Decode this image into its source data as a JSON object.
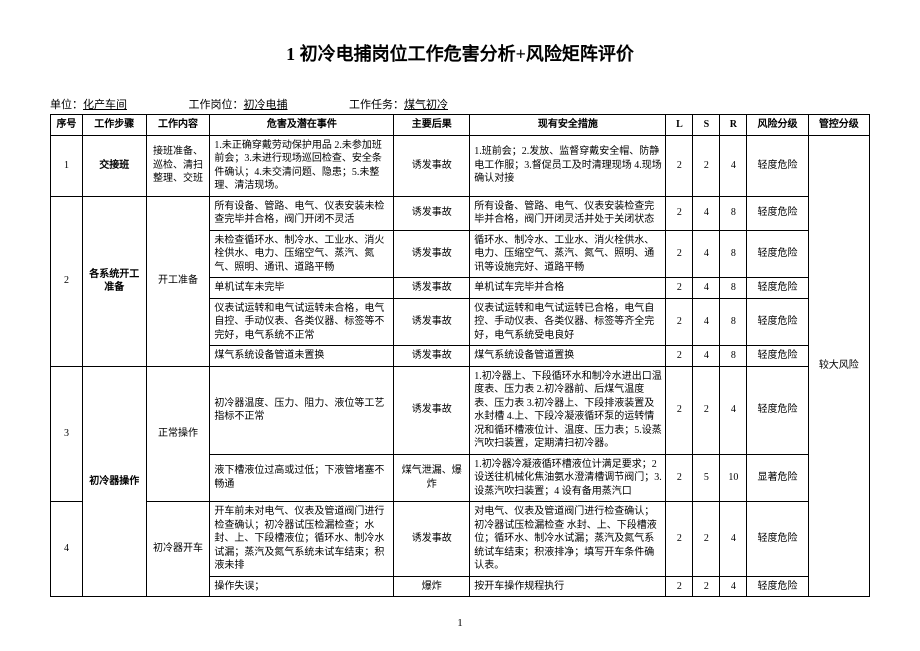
{
  "title": "1  初冷电捕岗位工作危害分析+风险矩阵评价",
  "meta": {
    "unit_label": "单位：",
    "unit_value": "化产车间",
    "post_label": "工作岗位：",
    "post_value": "初冷电捕",
    "task_label": "工作任务：",
    "task_value": "煤气初冷"
  },
  "headers": {
    "seq": "序号",
    "step": "工作步骤",
    "task": "工作内容",
    "hazard": "危害及潜在事件",
    "consequence": "主要后果",
    "measure": "现有安全措施",
    "l": "L",
    "s": "S",
    "r": "R",
    "risk": "风险分级",
    "ctrl": "管控分级"
  },
  "rows": [
    {
      "seq": "1",
      "step": "交接班",
      "task": "接班准备、巡检、清扫整理、交班",
      "hazard": "1.未正确穿戴劳动保护用品  2.未参加班前会；3.未进行现场巡回检查、安全条件确认；4.未交清问题、隐患；5.未整理、清洁现场。",
      "consequence": "诱发事故",
      "measure": "1.班前会；2.发放、监督穿戴安全帽、防静电工作服；3.督促员工及时清理现场 4.现场确认对接",
      "l": "2",
      "s": "2",
      "r": "4",
      "risk": "轻度危险"
    },
    {
      "seq": "2",
      "seq_rowspan": 5,
      "step": "各系统开工准备",
      "step_rowspan": 5,
      "task": "开工准备",
      "task_rowspan": 5,
      "hazard": "所有设备、管路、电气、仪表安装未检查完毕并合格，阀门开闭不灵活",
      "consequence": "诱发事故",
      "measure": "所有设备、管路、电气、仪表安装检查完毕并合格，阀门开闭灵活并处于关闭状态",
      "l": "2",
      "s": "4",
      "r": "8",
      "risk": "轻度危险"
    },
    {
      "hazard": "未检查循环水、制冷水、工业水、消火栓供水、电力、压缩空气、蒸汽、氮气、照明、通讯、道路平畅",
      "consequence": "诱发事故",
      "measure": "循环水、制冷水、工业水、消火栓供水、电力、压缩空气、蒸汽、氮气、照明、通讯等设施完好、道路平畅",
      "l": "2",
      "s": "4",
      "r": "8",
      "risk": "轻度危险"
    },
    {
      "hazard": "单机试车未完毕",
      "consequence": "诱发事故",
      "measure": "单机试车完毕并合格",
      "l": "2",
      "s": "4",
      "r": "8",
      "risk": "轻度危险"
    },
    {
      "hazard": "仪表试运转和电气试运转未合格，电气自控、手动仪表、各类仪器、标签等不完好，电气系统不正常",
      "consequence": "诱发事故",
      "measure": "仪表试运转和电气试运转已合格，电气自控、手动仪表、各类仪器、标签等齐全完好，电气系统受电良好",
      "l": "2",
      "s": "4",
      "r": "8",
      "risk": "轻度危险"
    },
    {
      "hazard": "煤气系统设备管道未置换",
      "consequence": "诱发事故",
      "measure": "煤气系统设备管道置换",
      "l": "2",
      "s": "4",
      "r": "8",
      "risk": "轻度危险"
    },
    {
      "seq": "3",
      "seq_rowspan": 2,
      "step": "初冷器操作",
      "step_rowspan": 4,
      "task": "正常操作",
      "task_rowspan": 2,
      "hazard": "初冷器温度、压力、阻力、液位等工艺指标不正常",
      "consequence": "诱发事故",
      "measure": "1.初冷器上、下段循环水和制冷水进出口温度表、压力表  2.初冷器前、后煤气温度表、压力表  3.初冷器上、下段排液装置及水封槽  4.上、下段冷凝液循环泵的运转情况和循环槽液位计、温度、压力表；5.设蒸汽吹扫装置，定期清扫初冷器。",
      "l": "2",
      "s": "2",
      "r": "4",
      "risk": "轻度危险"
    },
    {
      "hazard": "液下槽液位过高或过低；下液管堵塞不畅通",
      "consequence": "煤气泄漏、爆炸",
      "measure": "1.初冷器冷凝液循环槽液位计满足要求；2设送往机械化焦油氨水澄清槽调节阀门；3.设蒸汽吹扫装置；4 设有备用蒸汽口",
      "l": "2",
      "s": "5",
      "r": "10",
      "risk": "显著危险"
    },
    {
      "seq": "4",
      "seq_rowspan": 2,
      "task": "初冷器开车",
      "task_rowspan": 2,
      "hazard": "开车前未对电气、仪表及管道阀门进行检查确认；初冷器试压检漏检查；水封、上、下段槽液位；循环水、制冷水试漏；蒸汽及氮气系统未试车结束；积液未排",
      "consequence": "诱发事故",
      "measure": "对电气、仪表及管道阀门进行检查确认；初冷器试压检漏检查 水封、上、下段槽液位；循环水、制冷水试漏；蒸汽及氮气系统试车结束；积液排净；填写开车条件确认表。",
      "l": "2",
      "s": "2",
      "r": "4",
      "risk": "轻度危险"
    },
    {
      "hazard": "操作失误；",
      "consequence": "爆炸",
      "measure": "按开车操作规程执行",
      "l": "2",
      "s": "2",
      "r": "4",
      "risk": "轻度危险"
    }
  ],
  "ctrl_level": "较大风险",
  "page_number": "1"
}
